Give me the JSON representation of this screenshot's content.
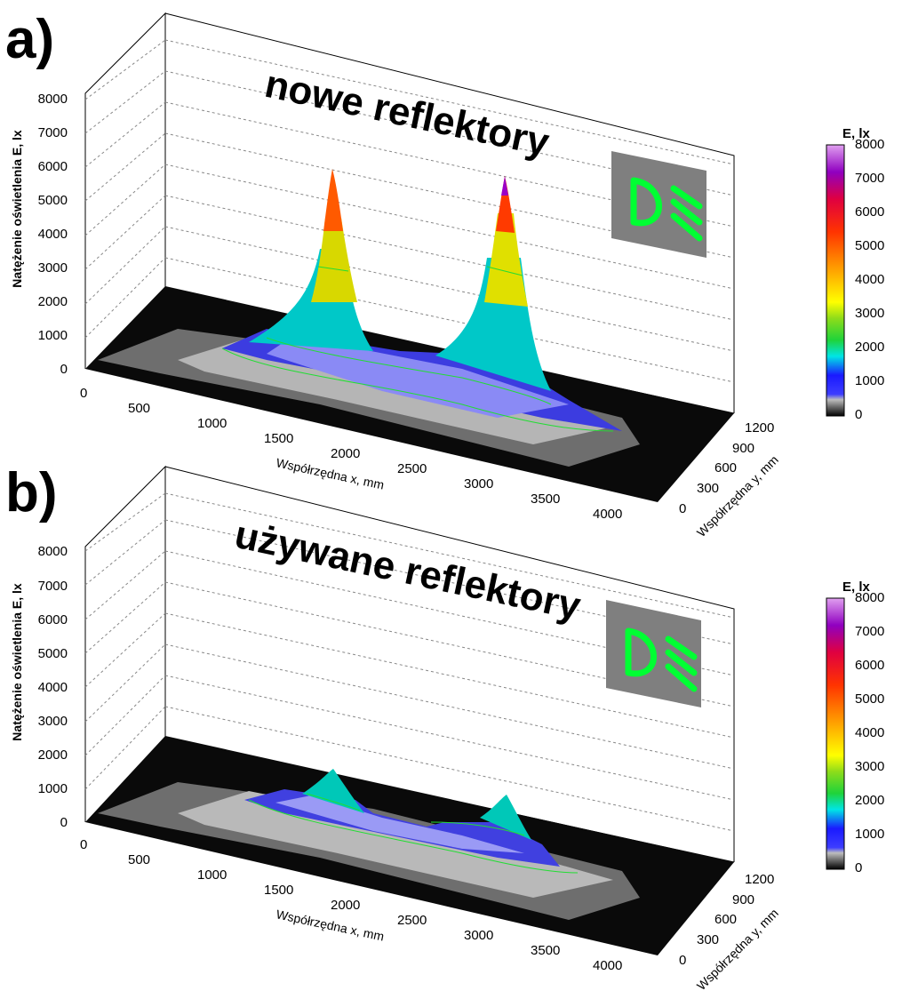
{
  "chart_data": [
    {
      "type": "surface3d",
      "panel_label": "a)",
      "title": "nowe reflektory",
      "xlabel": "Współrzędna x, mm",
      "ylabel": "Współrzędna y, mm",
      "zlabel": "Natężenie oświetlenia E, lx",
      "xlim": [
        0,
        4200
      ],
      "ylim": [
        0,
        1200
      ],
      "zlim": [
        0,
        8000
      ],
      "xticks": [
        "0",
        "500",
        "1000",
        "1500",
        "2000",
        "2500",
        "3000",
        "3500",
        "4000"
      ],
      "yticks": [
        "0",
        "300",
        "600",
        "900",
        "1200"
      ],
      "zticks": [
        "0",
        "1000",
        "2000",
        "3000",
        "4000",
        "5000",
        "6000",
        "7000",
        "8000"
      ],
      "peaks": [
        {
          "x": 1450,
          "y": 1150,
          "E": 5400
        },
        {
          "x": 3000,
          "y": 1150,
          "E": 6200
        }
      ],
      "contour_levels": [
        500,
        1000,
        1500,
        2000,
        2500,
        3000,
        3500,
        4000,
        4500,
        5000,
        5500
      ],
      "colorbar": {
        "title": "E, lx",
        "ticks": [
          "0",
          "1000",
          "2000",
          "3000",
          "4000",
          "5000",
          "6000",
          "7000",
          "8000"
        ]
      },
      "icon": "low-beam-headlight-icon"
    },
    {
      "type": "surface3d",
      "panel_label": "b)",
      "title": "używane reflektory",
      "xlabel": "Współrzędna x, mm",
      "ylabel": "Współrzędna y, mm",
      "zlabel": "Natężenie oświetlenia E, lx",
      "xlim": [
        0,
        4200
      ],
      "ylim": [
        0,
        1200
      ],
      "zlim": [
        0,
        8000
      ],
      "xticks": [
        "0",
        "500",
        "1000",
        "1500",
        "2000",
        "2500",
        "3000",
        "3500",
        "4000"
      ],
      "yticks": [
        "0",
        "300",
        "600",
        "900",
        "1200"
      ],
      "zticks": [
        "0",
        "1000",
        "2000",
        "3000",
        "4000",
        "5000",
        "6000",
        "7000",
        "8000"
      ],
      "peaks": [
        {
          "x": 1450,
          "y": 1150,
          "E": 1800
        },
        {
          "x": 3000,
          "y": 1150,
          "E": 1800
        }
      ],
      "contour_levels": [
        500,
        1000,
        1500
      ],
      "colorbar": {
        "title": "E, lx",
        "ticks": [
          "0",
          "1000",
          "2000",
          "3000",
          "4000",
          "5000",
          "6000",
          "7000",
          "8000"
        ]
      },
      "icon": "low-beam-headlight-icon"
    }
  ],
  "colors": {
    "icon_bg": "#7f7f7f",
    "icon_fg": "#00ff33",
    "contour": "#22dd33",
    "gridline": "#999999"
  }
}
